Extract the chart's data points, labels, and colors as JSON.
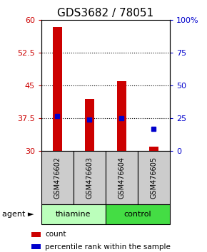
{
  "title": "GDS3682 / 78051",
  "samples": [
    "GSM476602",
    "GSM476603",
    "GSM476604",
    "GSM476605"
  ],
  "counts": [
    58.5,
    42.0,
    46.0,
    31.0
  ],
  "percentiles": [
    27.0,
    24.0,
    25.0,
    17.0
  ],
  "ymin": 30,
  "ymax": 60,
  "yticks": [
    30,
    37.5,
    45,
    52.5,
    60
  ],
  "right_yticks": [
    0,
    25,
    50,
    75,
    100
  ],
  "right_ylabels": [
    "0",
    "25",
    "50",
    "75",
    "100%"
  ],
  "bar_color": "#cc0000",
  "dot_color": "#0000cc",
  "bar_bottom": 30,
  "agent_groups": [
    {
      "label": "thiamine",
      "samples": [
        0,
        1
      ],
      "color": "#bbffbb"
    },
    {
      "label": "control",
      "samples": [
        2,
        3
      ],
      "color": "#44dd44"
    }
  ],
  "agent_label": "agent",
  "legend_count_label": "count",
  "legend_pct_label": "percentile rank within the sample",
  "sample_box_color": "#cccccc",
  "title_fontsize": 11,
  "tick_fontsize": 8,
  "bar_width": 0.3
}
